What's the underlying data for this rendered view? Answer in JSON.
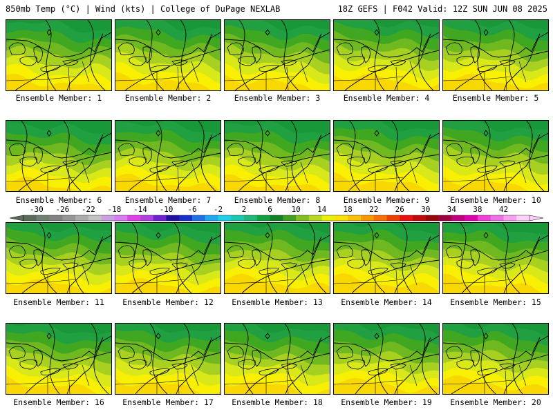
{
  "header": {
    "left_title": "850mb Temp (°C) | Wind (kts) | College of DuPage NEXLAB",
    "right_title": "18Z GEFS | F042 Valid: 12Z SUN JUN 08 2025"
  },
  "members": [
    {
      "label": "Ensemble Member: 1",
      "member": 1,
      "warmth": 0.45
    },
    {
      "label": "Ensemble Member: 2",
      "member": 2,
      "warmth": 0.55
    },
    {
      "label": "Ensemble Member: 3",
      "member": 3,
      "warmth": 0.5
    },
    {
      "label": "Ensemble Member: 4",
      "member": 4,
      "warmth": 0.7
    },
    {
      "label": "Ensemble Member: 5",
      "member": 5,
      "warmth": 0.6
    },
    {
      "label": "Ensemble Member: 6",
      "member": 6,
      "warmth": 0.35
    },
    {
      "label": "Ensemble Member: 7",
      "member": 7,
      "warmth": 0.5
    },
    {
      "label": "Ensemble Member: 8",
      "member": 8,
      "warmth": 0.4
    },
    {
      "label": "Ensemble Member: 9",
      "member": 9,
      "warmth": 0.55
    },
    {
      "label": "Ensemble Member: 10",
      "member": 10,
      "warmth": 0.45
    },
    {
      "label": "Ensemble Member: 11",
      "member": 11,
      "warmth": 0.55
    },
    {
      "label": "Ensemble Member: 12",
      "member": 12,
      "warmth": 0.5
    },
    {
      "label": "Ensemble Member: 13",
      "member": 13,
      "warmth": 0.7
    },
    {
      "label": "Ensemble Member: 14",
      "member": 14,
      "warmth": 0.65
    },
    {
      "label": "Ensemble Member: 15",
      "member": 15,
      "warmth": 0.55
    },
    {
      "label": "Ensemble Member: 16",
      "member": 16,
      "warmth": 0.5
    },
    {
      "label": "Ensemble Member: 17",
      "member": 17,
      "warmth": 0.55
    },
    {
      "label": "Ensemble Member: 18",
      "member": 18,
      "warmth": 0.5
    },
    {
      "label": "Ensemble Member: 19",
      "member": 19,
      "warmth": 0.6
    },
    {
      "label": "Ensemble Member: 20",
      "member": 20,
      "warmth": 0.65
    }
  ],
  "colorbar": {
    "tick_labels": [
      "-30",
      "-26",
      "-22",
      "-18",
      "-14",
      "-10",
      "-6",
      "-2",
      "2",
      "6",
      "10",
      "14",
      "18",
      "22",
      "26",
      "30",
      "34",
      "38",
      "42"
    ],
    "colors": [
      "#5a6b5a",
      "#6f7f70",
      "#828282",
      "#969696",
      "#acacac",
      "#c2c2c2",
      "#c8a0e0",
      "#d87cf0",
      "#e040e8",
      "#b040e0",
      "#7020d0",
      "#2010a0",
      "#1830c8",
      "#2070e8",
      "#20a8f0",
      "#20d0e8",
      "#18c8b0",
      "#20b878",
      "#10a040",
      "#108028",
      "#40a020",
      "#80c020",
      "#b8d820",
      "#e8f000",
      "#f8e000",
      "#f8c000",
      "#f89800",
      "#f87000",
      "#f04000",
      "#e81010",
      "#c00808",
      "#980808",
      "#a00040",
      "#c00080",
      "#e000b0",
      "#f040d8",
      "#f070e8",
      "#f8a0f0",
      "#fcd0f8"
    ]
  }
}
